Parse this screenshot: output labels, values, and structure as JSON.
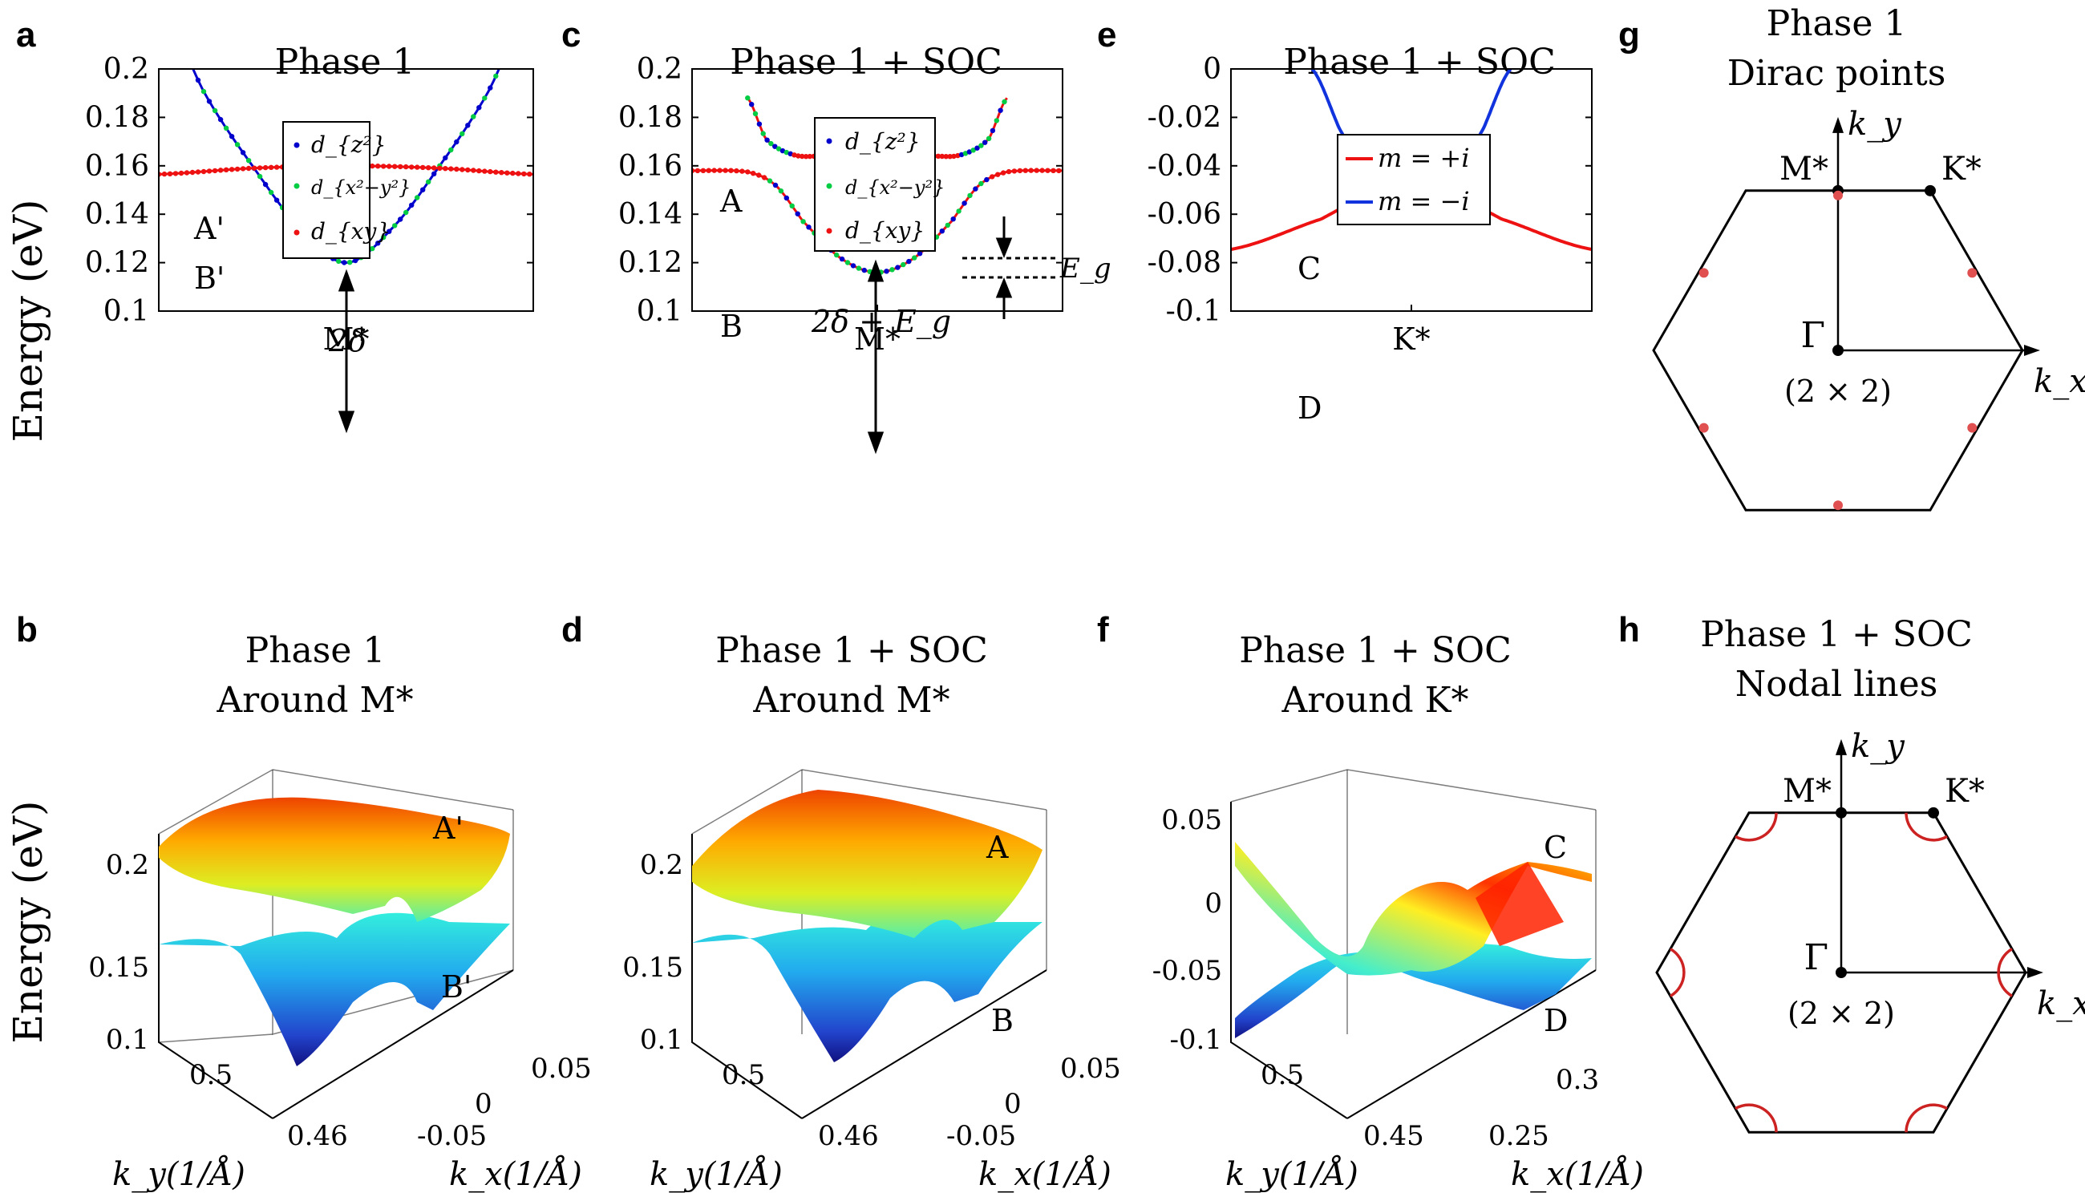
{
  "panel_letters": [
    "a",
    "b",
    "c",
    "d",
    "e",
    "f",
    "g",
    "h"
  ],
  "titles": {
    "a": [
      "Phase 1"
    ],
    "b": [
      "Phase 1",
      "Around M*"
    ],
    "c": [
      "Phase 1 + SOC"
    ],
    "d": [
      "Phase 1 + SOC",
      "Around M*"
    ],
    "e": [
      "Phase 1 + SOC"
    ],
    "f": [
      "Phase 1 + SOC",
      "Around K*"
    ],
    "g": [
      "Phase 1",
      "Dirac points"
    ],
    "h": [
      "Phase 1 + SOC",
      "Nodal lines"
    ]
  },
  "ylabel": "Energy (eV)",
  "colors": {
    "dz2": "#0000cc",
    "dx2y2": "#00cc44",
    "dxy": "#ee1111",
    "m_plus": "#ee1111",
    "m_minus": "#1133dd",
    "dirac": "#e05050",
    "nodal": "#cc2222"
  },
  "legend_orbitals": [
    "d_{z²}",
    "d_{x²−y²}",
    "d_{xy}"
  ],
  "legend_m": [
    "m = +i",
    "m = −i"
  ],
  "chart_data": [
    {
      "id": "a",
      "type": "line",
      "title": "Phase 1",
      "ylabel": "Energy (eV)",
      "ylim": [
        0.1,
        0.2
      ],
      "yticks": [
        "0.2",
        "0.18",
        "0.16",
        "0.14",
        "0.12",
        "0.1"
      ],
      "xticks": [
        "M*"
      ],
      "grid": false,
      "legend": "top-center",
      "series": [
        {
          "name": "d_{z²}",
          "x": [
            -1,
            -0.75,
            -0.5,
            -0.25,
            0,
            0.25,
            0.5,
            0.75,
            1
          ],
          "values": [
            0.228,
            0.1893,
            0.16,
            0.1345,
            0.12,
            0.1345,
            0.16,
            0.1893,
            0.228
          ]
        },
        {
          "name": "d_{xy}",
          "x": [
            -1,
            -0.5,
            0,
            0.5,
            1
          ],
          "values": [
            0.1565,
            0.159,
            0.16,
            0.159,
            0.1565
          ]
        }
      ],
      "annotations": [
        "A'",
        "B'",
        "2δ"
      ]
    },
    {
      "id": "c",
      "type": "line",
      "title": "Phase 1 + SOC",
      "ylim": [
        0.1,
        0.2
      ],
      "yticks": [
        "0.2",
        "0.18",
        "0.16",
        "0.14",
        "0.12",
        "0.1"
      ],
      "xticks": [
        "M*"
      ],
      "grid": false,
      "legend": "top-center",
      "series": [
        {
          "name": "upper band A",
          "x": [
            -0.7,
            -0.6,
            -0.45,
            -0.3,
            0,
            0.3,
            0.45,
            0.6,
            0.7
          ],
          "values": [
            0.188,
            0.171,
            0.1645,
            0.164,
            0.164,
            0.164,
            0.1645,
            0.171,
            0.188
          ]
        },
        {
          "name": "lower band B",
          "x": [
            -1,
            -0.7,
            -0.55,
            -0.4,
            -0.2,
            0,
            0.2,
            0.4,
            0.55,
            0.7,
            1
          ],
          "values": [
            0.158,
            0.1575,
            0.152,
            0.137,
            0.122,
            0.116,
            0.122,
            0.137,
            0.152,
            0.1575,
            0.158
          ]
        }
      ],
      "annotations": [
        "A",
        "B",
        "2δ + E_g",
        "E_g"
      ]
    },
    {
      "id": "e",
      "type": "line",
      "title": "Phase 1 + SOC",
      "ylim": [
        -0.1,
        0
      ],
      "yticks": [
        "0",
        "-0.02",
        "-0.04",
        "-0.06",
        "-0.08",
        "-0.1"
      ],
      "xticks": [
        "K*"
      ],
      "grid": false,
      "legend": "top-center",
      "series": [
        {
          "name": "m = +i",
          "x": [
            -1,
            -0.5,
            -0.2,
            0,
            0.2,
            0.5,
            1
          ],
          "values": [
            -0.0745,
            -0.062,
            -0.051,
            -0.047,
            -0.051,
            -0.062,
            -0.0745
          ]
        },
        {
          "name": "m = −i",
          "x": [
            -0.55,
            -0.4,
            -0.2,
            0,
            0.2,
            0.4,
            0.55
          ],
          "values": [
            0.0,
            -0.0245,
            -0.0505,
            -0.0615,
            -0.0505,
            -0.0245,
            0.0
          ]
        }
      ],
      "annotations": [
        "C",
        "D"
      ]
    },
    {
      "id": "b",
      "type": "surface",
      "title": "Phase 1 Around M*",
      "zticks": [
        "0.2",
        "0.15",
        "0.1"
      ],
      "yticks": [
        "0.5",
        "0.46"
      ],
      "xticks": [
        "-0.05",
        "0",
        "0.05"
      ],
      "ylabel": "k_y(1/Å)",
      "xlabel": "k_x(1/Å)",
      "annotations": [
        "A'",
        "B'"
      ]
    },
    {
      "id": "d",
      "type": "surface",
      "title": "Phase 1 + SOC Around M*",
      "zticks": [
        "0.2",
        "0.15",
        "0.1"
      ],
      "yticks": [
        "0.5",
        "0.46"
      ],
      "xticks": [
        "-0.05",
        "0",
        "0.05"
      ],
      "ylabel": "k_y(1/Å)",
      "xlabel": "k_x(1/Å)",
      "annotations": [
        "A",
        "B"
      ]
    },
    {
      "id": "f",
      "type": "surface",
      "title": "Phase 1 + SOC Around K*",
      "zticks": [
        "0.05",
        "0",
        "-0.05",
        "-0.1"
      ],
      "yticks": [
        "0.5",
        "0.45"
      ],
      "xticks": [
        "0.25",
        "0.3"
      ],
      "ylabel": "k_y(1/Å)",
      "xlabel": "k_x(1/Å)",
      "annotations": [
        "C",
        "D"
      ]
    }
  ],
  "bz": {
    "labels": {
      "M": "M*",
      "K": "K*",
      "G": "Γ",
      "cell": "(2 × 2)",
      "kx": "k_x",
      "ky": "k_y"
    },
    "dirac_points": 6,
    "nodal_arcs": 6
  }
}
